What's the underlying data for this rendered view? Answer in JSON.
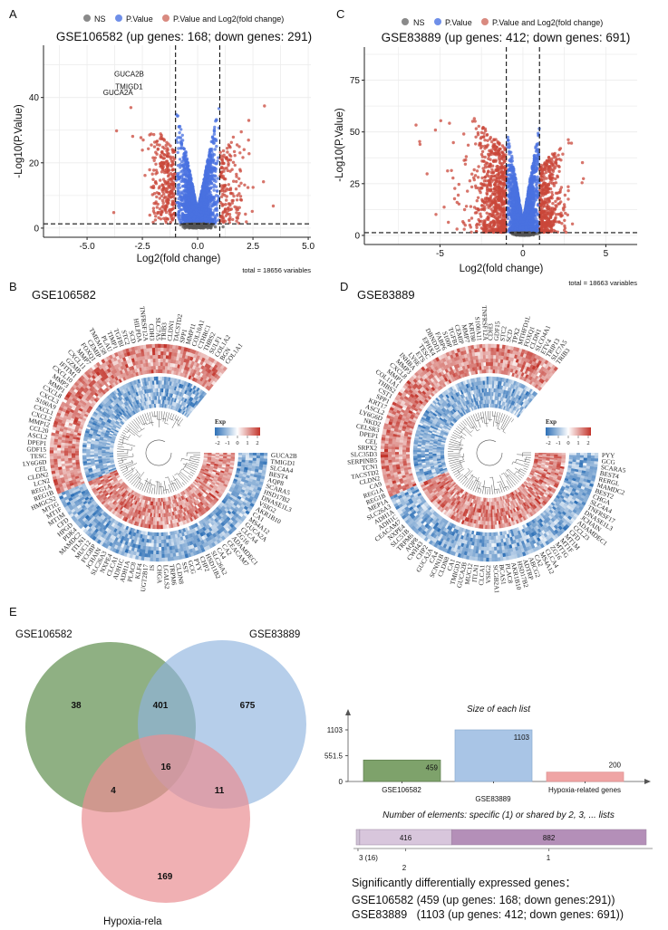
{
  "panels": {
    "a": "A",
    "b": "B",
    "c": "C",
    "d": "D",
    "e": "E"
  },
  "legend": [
    {
      "label": "NS",
      "color": "#8a8a8a"
    },
    {
      "label": "P.Value",
      "color": "#6f8fe8"
    },
    {
      "label": "P.Value and Log2(fold change)",
      "color": "#d98a80"
    }
  ],
  "chart_data": [
    {
      "id": "volcano_a",
      "type": "scatter",
      "title": "GSE106582 (up genes: 168; down genes: 291)",
      "xlabel": "Log2(fold change)",
      "ylabel": "-Log10(P.Value)",
      "xlim": [
        -6.97,
        5.12
      ],
      "ylim": [
        -2.8,
        56
      ],
      "xticks": [
        -5,
        -2.5,
        0,
        2.5,
        5
      ],
      "xtick_labels": [
        "-5.0",
        "-2.5",
        "0.0",
        "2.5",
        "5.0"
      ],
      "yticks": [
        0,
        20,
        40
      ],
      "ytick_labels": [
        "0",
        "20",
        "40"
      ],
      "grid": true,
      "legend_position": "top",
      "thresholds": {
        "log2fc": 1,
        "neg_log10_p": 1.3
      },
      "up_genes": 168,
      "down_genes": 291,
      "caption": "total = 18656 variables",
      "labeled_points": [
        {
          "gene": "GUCA2B",
          "x": -3.1,
          "y": 46.5
        },
        {
          "gene": "TMIGD1",
          "x": -3.1,
          "y": 42.6
        },
        {
          "gene": "GUCA2A",
          "x": -3.6,
          "y": 40.7
        }
      ]
    },
    {
      "id": "volcano_c",
      "type": "scatter",
      "title": "GSE83889 (up genes: 412; down genes: 691)",
      "xlabel": "Log2(fold change)",
      "ylabel": "-Log10(P.Value)",
      "xlim": [
        -9.56,
        6.89
      ],
      "ylim": [
        -4.4,
        91
      ],
      "xticks": [
        -5,
        0,
        5
      ],
      "xtick_labels": [
        "-5",
        "0",
        "5"
      ],
      "yticks": [
        0,
        25,
        50,
        75
      ],
      "ytick_labels": [
        "0",
        "25",
        "50",
        "75"
      ],
      "grid": true,
      "legend_position": "top",
      "thresholds": {
        "log2fc": 1,
        "neg_log10_p": 1.3
      },
      "up_genes": 412,
      "down_genes": 691,
      "caption": "total = 18663 variables"
    },
    {
      "id": "heatmap_b",
      "type": "heatmap",
      "layout": "circular",
      "title": "GSE106582",
      "legend_title": "Exp",
      "legend_ticks": [
        "-2",
        "-1",
        "0",
        "1",
        "2"
      ],
      "down_genes": [
        "GUCA2B",
        "TMIGD1",
        "SLC4A4",
        "BEST4",
        "AQP8",
        "SCARA5",
        "HSD17B2",
        "DNASE1L3",
        "VSIG2",
        "AKR1B10",
        "CA1",
        "MS4A12",
        "GUCA2A",
        "CLCA4",
        "ZG16",
        "ADAMDEC1",
        "CEACAM7",
        "CA2",
        "CA4",
        "SLC26A2",
        "HSD11B2",
        "CHP2",
        "PYY",
        "GCG",
        "SST",
        "CLDN8",
        "TRPM6",
        "LGALS2",
        "CHGA",
        "IS",
        "UGT2B17",
        "KLF4",
        "PLAC8",
        "ADH1A",
        "ADH1C",
        "CLCA1",
        "NXPE4",
        "SLC26A3",
        "JCHAIN",
        "FCGBP",
        "MUC12",
        "ITLN1",
        "MAMDC2",
        "PDK4",
        "HPGD",
        "CFD",
        "MT1M",
        "MT1F",
        "MT1G",
        "HMGCS2"
      ],
      "up_genes": [
        "REG1B",
        "REG1A",
        "LCN2",
        "CLDN2",
        "CEL",
        "LY6G6D",
        "TESC",
        "GDF15",
        "DPEP1",
        "ASCL2",
        "CCL20",
        "MMP12",
        "CXCL2",
        "CXCL1",
        "S100A9",
        "CXCL3",
        "CXCL8",
        "MMP1",
        "MMP3",
        "CXCL10",
        "IFITM1",
        "GZMB",
        "CXCL11",
        "MMP7",
        "FOXQ1",
        "CEMIP",
        "TMEM158",
        "PLAU",
        "TIMP1",
        "TGFBI",
        "STC2",
        "SCD",
        "HILPDA",
        "TNFRSF12A",
        "CDH3",
        "SLC7A5",
        "TRIB3",
        "CLDN1",
        "TACSTD2",
        "SPP1",
        "MMP11",
        "COL10A1",
        "CTHRC1",
        "THBS2",
        "SULF1",
        "COL1A2",
        "BGN",
        "COL1A1"
      ]
    },
    {
      "id": "heatmap_d",
      "type": "heatmap",
      "layout": "circular",
      "title": "GSE83889",
      "legend_title": "Exp",
      "legend_ticks": [
        "-2",
        "-1",
        "0",
        "1",
        "2"
      ],
      "down_genes": [
        "PYY",
        "GCG",
        "SCARA5",
        "BEST4",
        "RERGL",
        "MAMDC2",
        "BEST2",
        "CHGA",
        "SLC4A4",
        "TNFRSF17",
        "DNASE1L3",
        "JCHAIN",
        "ADAMDEC1",
        "CCL23",
        "CFD",
        "MT1M",
        "MT1F",
        "MT1G",
        "ZG16",
        "CLCA4",
        "MS4A12",
        "CA2",
        "ABCG2",
        "ADTRP",
        "HSD17B2",
        "AKR1B10",
        "PLAC8",
        "BCAS1",
        "SCGB2A1",
        "VSIG2",
        "CLCA1",
        "ITLN1",
        "MUC12",
        "GUCA2B",
        "TMIGD1",
        "CA1",
        "CLDN8",
        "SCNN1B",
        "CA4",
        "GUCA2A",
        "CHP2",
        "CWH43",
        "AQP8",
        "TRPM6",
        "SLC51B",
        "NXPE4",
        "CEACAM7",
        "ADH1C",
        "ADH1A",
        "SLC26A3",
        "MEP1A"
      ],
      "up_genes": [
        "REG1B",
        "REG1A",
        "CA9",
        "CLDN2",
        "TACSTD2",
        "TCN1",
        "SERPINB5",
        "SLC35D3",
        "SRPX2",
        "CEL",
        "DPEP1",
        "CELSR3",
        "NKD2",
        "LY6G6D",
        "ASCL2",
        "KRT17",
        "SPP1",
        "CST1",
        "THBS2",
        "COL11A1",
        "MMP1",
        "CXCL8",
        "MMP3",
        "INHBA",
        "LY6E",
        "ETS",
        "TESC",
        "EPHX4",
        "DBNDD1",
        "FABP6",
        "S100P",
        "TGFBI",
        "CEMIP",
        "MMP7",
        "KRT80",
        "S100A11",
        "TNFRSF12A",
        "CDH3",
        "GDF15",
        "STC2",
        "SCD",
        "TPX2",
        "MTHFD1L",
        "FOXQ1",
        "CLDN1",
        "SLCO4A1",
        "ETV4",
        "TRIP13",
        "SLC7A5",
        "TRIB3"
      ]
    },
    {
      "id": "venn_e",
      "type": "venn",
      "sets": [
        {
          "label": "GSE106582",
          "color": "#5f8f4e"
        },
        {
          "label": "GSE83889",
          "color": "#8fb3de"
        },
        {
          "label": "Hypoxia-rela",
          "color": "#e98f93"
        }
      ],
      "regions": {
        "GSE106582_only": "38",
        "GSE106582_GSE83889": "401",
        "GSE83889_only": "675",
        "all_three": "16",
        "GSE106582_Hypoxia": "4",
        "GSE83889_Hypoxia": "11",
        "Hypoxia_only": "169"
      }
    },
    {
      "id": "list_sizes",
      "type": "bar",
      "title": "Size of each list",
      "categories": [
        "GSE106582",
        "GSE83889",
        "Hypoxia-related genes"
      ],
      "values": [
        459,
        1103,
        200
      ],
      "value_labels": [
        "459",
        "1103",
        "200"
      ],
      "colors": [
        "#7ea26b",
        "#a9c5e6",
        "#efa4a4"
      ],
      "ylim": [
        0,
        1103
      ],
      "yticks": [
        0,
        551.5,
        1103
      ],
      "ytick_labels": [
        "0",
        "551.5",
        "1103"
      ]
    },
    {
      "id": "shared_elements",
      "type": "bar",
      "orientation": "horizontal-stacked",
      "title": "Number of elements: specific (1) or shared by 2, 3, ... lists",
      "segments": [
        {
          "label": "3 (16)",
          "value": 16,
          "value_label": "",
          "color": "#cfc2d6"
        },
        {
          "label": "2",
          "value": 416,
          "value_label": "416",
          "color": "#d8c6dc"
        },
        {
          "label": "1",
          "value": 882,
          "value_label": "882",
          "color": "#b48fb8"
        }
      ]
    }
  ],
  "summary": {
    "heading": "Significantly differentially expressed genes：",
    "line1": "GSE106582 (459 (up genes: 168; down genes:291))",
    "line2": "GSE83889   (1103 (up genes: 412; down genes: 691))"
  }
}
